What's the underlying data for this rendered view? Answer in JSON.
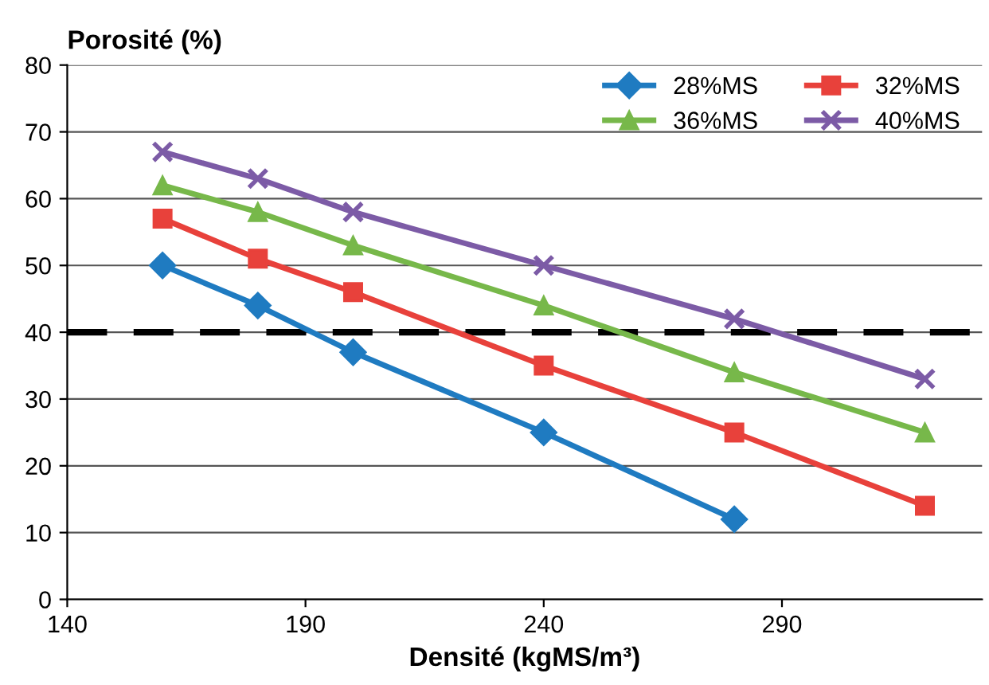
{
  "chart_data": {
    "type": "line",
    "ylabel": "Porosité (%)",
    "xlabel": "Densité (kgMS/m³)",
    "xlim": [
      140,
      332
    ],
    "xticks": [
      140,
      190,
      240,
      290
    ],
    "ylim": [
      0,
      80
    ],
    "yticks": [
      0,
      10,
      20,
      30,
      40,
      50,
      60,
      70,
      80
    ],
    "grid": "y",
    "legend": "top right",
    "line_style": "solid",
    "series": [
      {
        "name": "28%MS",
        "color": "#1f7bc1",
        "marker": "diamond",
        "x": [
          160,
          180,
          200,
          240,
          280
        ],
        "values": [
          50,
          44,
          37,
          25,
          12
        ]
      },
      {
        "name": "32%MS",
        "color": "#e8413b",
        "marker": "square",
        "x": [
          160,
          180,
          200,
          240,
          280,
          320
        ],
        "values": [
          57,
          51,
          46,
          35,
          25,
          14
        ]
      },
      {
        "name": "36%MS",
        "color": "#77b84a",
        "marker": "triangle",
        "x": [
          160,
          180,
          200,
          240,
          280,
          320
        ],
        "values": [
          62,
          58,
          53,
          44,
          34,
          25
        ]
      },
      {
        "name": "40%MS",
        "color": "#7c5ba6",
        "marker": "cross",
        "x": [
          160,
          180,
          200,
          240,
          280,
          320
        ],
        "values": [
          67,
          63,
          58,
          50,
          42,
          33
        ]
      }
    ],
    "ref_lines": [
      {
        "axis": "y",
        "value": 40,
        "label": null,
        "color": "#000000",
        "line_style": "dashed"
      }
    ]
  }
}
